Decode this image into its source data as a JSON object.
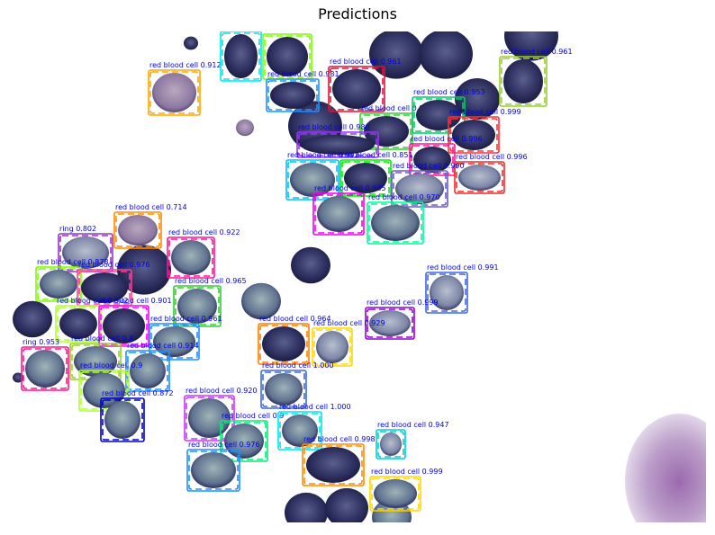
{
  "title": "Predictions",
  "colors": {
    "label_text": "#0000ee",
    "background": "#e9e4ee"
  },
  "detections": [
    {
      "label": "red blood cell",
      "score": "0.912",
      "color": "#ffa500"
    },
    {
      "label": "red blood cell",
      "score": "0.990",
      "color": "#00e5ee"
    },
    {
      "label": "red blood cell",
      "score": "0.991",
      "color": "#7cfc00"
    },
    {
      "label": "red blood cell",
      "score": "0.981",
      "color": "#1e90ff"
    },
    {
      "label": "red blood cell",
      "score": "0.961",
      "color": "#dc143c"
    },
    {
      "label": "red blood cell",
      "score": "0.961",
      "color": "#9acd32"
    },
    {
      "label": "red blood cell",
      "score": "0.975",
      "color": "#32cd32"
    },
    {
      "label": "red blood cell",
      "score": "0.953",
      "color": "#00cc66"
    },
    {
      "label": "red blood cell",
      "score": "0.999",
      "color": "#ff3030"
    },
    {
      "label": "red blood cell",
      "score": "0.980",
      "color": "#9b30ff"
    },
    {
      "label": "red blood cell",
      "score": "0.996",
      "color": "#ff1493"
    },
    {
      "label": "red blood cell",
      "score": "0.996",
      "color": "#ee2c2c"
    },
    {
      "label": "red blood cell",
      "score": "0.992",
      "color": "#00bfff"
    },
    {
      "label": "red blood cell",
      "score": "0.851",
      "color": "#00ee00"
    },
    {
      "label": "red blood cell",
      "score": "0.990",
      "color": "#6a5acd"
    },
    {
      "label": "red blood cell",
      "score": "0.985",
      "color": "#ee00ee"
    },
    {
      "label": "red blood cell",
      "score": "0.970",
      "color": "#00fa9a"
    },
    {
      "label": "red blood cell",
      "score": "0.714",
      "color": "#ff8c00"
    },
    {
      "label": "ring",
      "score": "0.802",
      "color": "#9932cc"
    },
    {
      "label": "red blood cell",
      "score": "0.922",
      "color": "#ff1493"
    },
    {
      "label": "red blood cell",
      "score": "0.878",
      "color": "#7cfc00"
    },
    {
      "label": "red blood cell",
      "score": "0.976",
      "color": "#ff3e96"
    },
    {
      "label": "red blood cell",
      "score": "0.965",
      "color": "#32cd32"
    },
    {
      "label": "red blood cell",
      "score": "0.902",
      "color": "#adff2f"
    },
    {
      "label": "red blood cell",
      "score": "0.901",
      "color": "#ff00ff"
    },
    {
      "label": "red blood cell",
      "score": "0.961",
      "color": "#1e90ff"
    },
    {
      "label": "red blood cell",
      "score": "0.991",
      "color": "#4169e1"
    },
    {
      "label": "red blood cell",
      "score": "0.999",
      "color": "#9400d3"
    },
    {
      "label": "red blood cell",
      "score": "0.964",
      "color": "#ff7f00"
    },
    {
      "label": "red blood cell",
      "score": "0.929",
      "color": "#ffd700"
    },
    {
      "label": "ring",
      "score": "0.953",
      "color": "#ff1493"
    },
    {
      "label": "red blood cell",
      "score": "0.9",
      "color": "#9acd32"
    },
    {
      "label": "red blood cell",
      "score": "0.914",
      "color": "#1e90ff"
    },
    {
      "label": "red blood cell",
      "score": "0.9",
      "color": "#adff2f"
    },
    {
      "label": "red blood cell",
      "score": "1.000",
      "color": "#4169e1"
    },
    {
      "label": "red blood cell",
      "score": "0.872",
      "color": "#0000cd"
    },
    {
      "label": "red blood cell",
      "score": "0.920",
      "color": "#cc33ff"
    },
    {
      "label": "red blood cell",
      "score": "0.9",
      "color": "#00ee76"
    },
    {
      "label": "red blood cell",
      "score": "1.000",
      "color": "#00e5ee"
    },
    {
      "label": "red blood cell",
      "score": "0.947",
      "color": "#00ced1"
    },
    {
      "label": "red blood cell",
      "score": "0.976",
      "color": "#1e90ff"
    },
    {
      "label": "red blood cell",
      "score": "0.998",
      "color": "#ff8c00"
    },
    {
      "label": "red blood cell",
      "score": "0.999",
      "color": "#ffd700"
    }
  ]
}
